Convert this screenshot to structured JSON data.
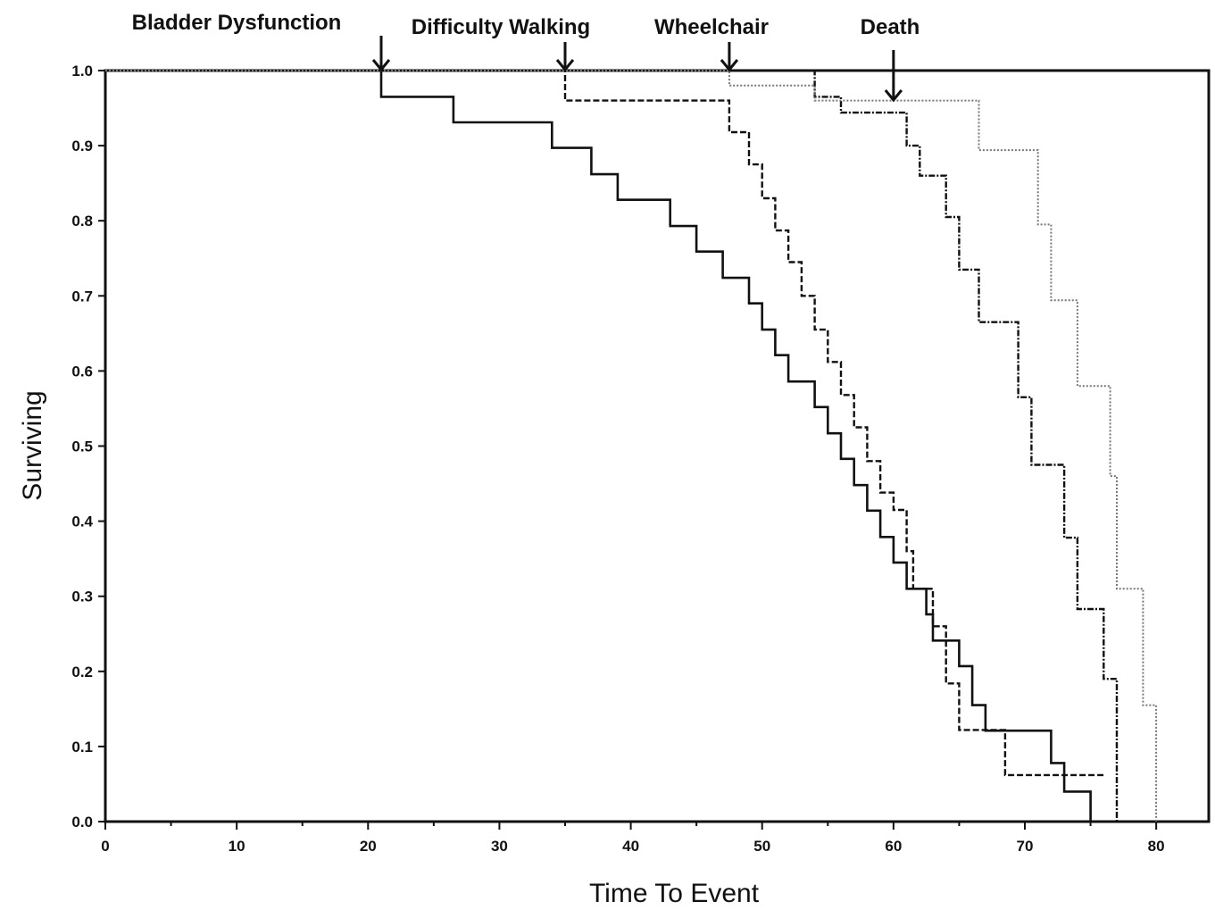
{
  "chart_data": {
    "type": "line",
    "title": "",
    "xlabel": "Time To Event",
    "ylabel": "Surviving",
    "xlim": [
      0,
      84
    ],
    "ylim": [
      0,
      1.0
    ],
    "x_ticks": [
      "0",
      "10",
      "20",
      "30",
      "40",
      "50",
      "60",
      "70",
      "80"
    ],
    "y_ticks": [
      "0.0",
      "0.1",
      "0.2",
      "0.3",
      "0.4",
      "0.5",
      "0.6",
      "0.7",
      "0.8",
      "0.9",
      "1.0"
    ],
    "grid": false,
    "legend": "none",
    "annotations": [
      {
        "text": "Bladder Dysfunction",
        "x": 21
      },
      {
        "text": "Difficulty Walking",
        "x": 35
      },
      {
        "text": "Wheelchair",
        "x": 47.5
      },
      {
        "text": "Death",
        "x": 60
      }
    ],
    "series": [
      {
        "style": "solid",
        "color": "#111111",
        "points": [
          [
            0,
            1.0
          ],
          [
            21,
            1.0
          ],
          [
            21,
            0.965
          ],
          [
            26.5,
            0.965
          ],
          [
            26.5,
            0.931
          ],
          [
            34,
            0.931
          ],
          [
            34,
            0.897
          ],
          [
            37,
            0.897
          ],
          [
            37,
            0.862
          ],
          [
            39,
            0.862
          ],
          [
            39,
            0.828
          ],
          [
            43,
            0.828
          ],
          [
            43,
            0.793
          ],
          [
            45,
            0.793
          ],
          [
            45,
            0.759
          ],
          [
            47,
            0.759
          ],
          [
            47,
            0.724
          ],
          [
            49,
            0.724
          ],
          [
            49,
            0.69
          ],
          [
            50,
            0.69
          ],
          [
            50,
            0.655
          ],
          [
            51,
            0.655
          ],
          [
            51,
            0.621
          ],
          [
            52,
            0.621
          ],
          [
            52,
            0.586
          ],
          [
            54,
            0.586
          ],
          [
            54,
            0.552
          ],
          [
            55,
            0.552
          ],
          [
            55,
            0.517
          ],
          [
            56,
            0.517
          ],
          [
            56,
            0.483
          ],
          [
            57,
            0.483
          ],
          [
            57,
            0.448
          ],
          [
            58,
            0.448
          ],
          [
            58,
            0.414
          ],
          [
            59,
            0.414
          ],
          [
            59,
            0.379
          ],
          [
            60,
            0.379
          ],
          [
            60,
            0.345
          ],
          [
            61,
            0.345
          ],
          [
            61,
            0.31
          ],
          [
            62.5,
            0.31
          ],
          [
            62.5,
            0.276
          ],
          [
            63,
            0.276
          ],
          [
            63,
            0.241
          ],
          [
            65,
            0.241
          ],
          [
            65,
            0.207
          ],
          [
            66,
            0.207
          ],
          [
            66,
            0.155
          ],
          [
            67,
            0.155
          ],
          [
            67,
            0.121
          ],
          [
            72,
            0.121
          ],
          [
            72,
            0.078
          ],
          [
            73,
            0.078
          ],
          [
            73,
            0.04
          ],
          [
            75,
            0.04
          ],
          [
            75,
            0.0
          ]
        ]
      },
      {
        "style": "dashed",
        "color": "#111111",
        "points": [
          [
            0,
            1.0
          ],
          [
            35,
            1.0
          ],
          [
            35,
            0.96
          ],
          [
            47.5,
            0.96
          ],
          [
            47.5,
            0.918
          ],
          [
            49,
            0.918
          ],
          [
            49,
            0.875
          ],
          [
            50,
            0.875
          ],
          [
            50,
            0.83
          ],
          [
            51,
            0.83
          ],
          [
            51,
            0.787
          ],
          [
            52,
            0.787
          ],
          [
            52,
            0.745
          ],
          [
            53,
            0.745
          ],
          [
            53,
            0.7
          ],
          [
            54,
            0.7
          ],
          [
            54,
            0.655
          ],
          [
            55,
            0.655
          ],
          [
            55,
            0.612
          ],
          [
            56,
            0.612
          ],
          [
            56,
            0.568
          ],
          [
            57,
            0.568
          ],
          [
            57,
            0.525
          ],
          [
            58,
            0.525
          ],
          [
            58,
            0.48
          ],
          [
            59,
            0.48
          ],
          [
            59,
            0.438
          ],
          [
            60,
            0.438
          ],
          [
            60,
            0.415
          ],
          [
            61,
            0.415
          ],
          [
            61,
            0.36
          ],
          [
            61.5,
            0.36
          ],
          [
            61.5,
            0.31
          ],
          [
            63,
            0.31
          ],
          [
            63,
            0.26
          ],
          [
            64,
            0.26
          ],
          [
            64,
            0.184
          ],
          [
            65,
            0.184
          ],
          [
            65,
            0.122
          ],
          [
            68.5,
            0.122
          ],
          [
            68.5,
            0.062
          ],
          [
            76,
            0.062
          ]
        ]
      },
      {
        "style": "dashdot",
        "color": "#111111",
        "points": [
          [
            0,
            1.0
          ],
          [
            54,
            1.0
          ],
          [
            54,
            0.965
          ],
          [
            56,
            0.965
          ],
          [
            56,
            0.944
          ],
          [
            61,
            0.944
          ],
          [
            61,
            0.9
          ],
          [
            62,
            0.9
          ],
          [
            62,
            0.86
          ],
          [
            64,
            0.86
          ],
          [
            64,
            0.805
          ],
          [
            65,
            0.805
          ],
          [
            65,
            0.735
          ],
          [
            66.5,
            0.735
          ],
          [
            66.5,
            0.665
          ],
          [
            69.5,
            0.665
          ],
          [
            69.5,
            0.565
          ],
          [
            70.5,
            0.565
          ],
          [
            70.5,
            0.475
          ],
          [
            73,
            0.475
          ],
          [
            73,
            0.378
          ],
          [
            74,
            0.378
          ],
          [
            74,
            0.283
          ],
          [
            76,
            0.283
          ],
          [
            76,
            0.19
          ],
          [
            77,
            0.19
          ],
          [
            77,
            0.0
          ]
        ]
      },
      {
        "style": "dotted",
        "color": "#777777",
        "points": [
          [
            0,
            1.0
          ],
          [
            47.5,
            1.0
          ],
          [
            47.5,
            0.98
          ],
          [
            54,
            0.98
          ],
          [
            54,
            0.96
          ],
          [
            66.5,
            0.96
          ],
          [
            66.5,
            0.894
          ],
          [
            71,
            0.894
          ],
          [
            71,
            0.795
          ],
          [
            72,
            0.795
          ],
          [
            72,
            0.694
          ],
          [
            74,
            0.694
          ],
          [
            74,
            0.58
          ],
          [
            76.5,
            0.58
          ],
          [
            76.5,
            0.46
          ],
          [
            77,
            0.46
          ],
          [
            77,
            0.31
          ],
          [
            79,
            0.31
          ],
          [
            79,
            0.155
          ],
          [
            80,
            0.155
          ],
          [
            80,
            0.0
          ]
        ]
      }
    ]
  }
}
